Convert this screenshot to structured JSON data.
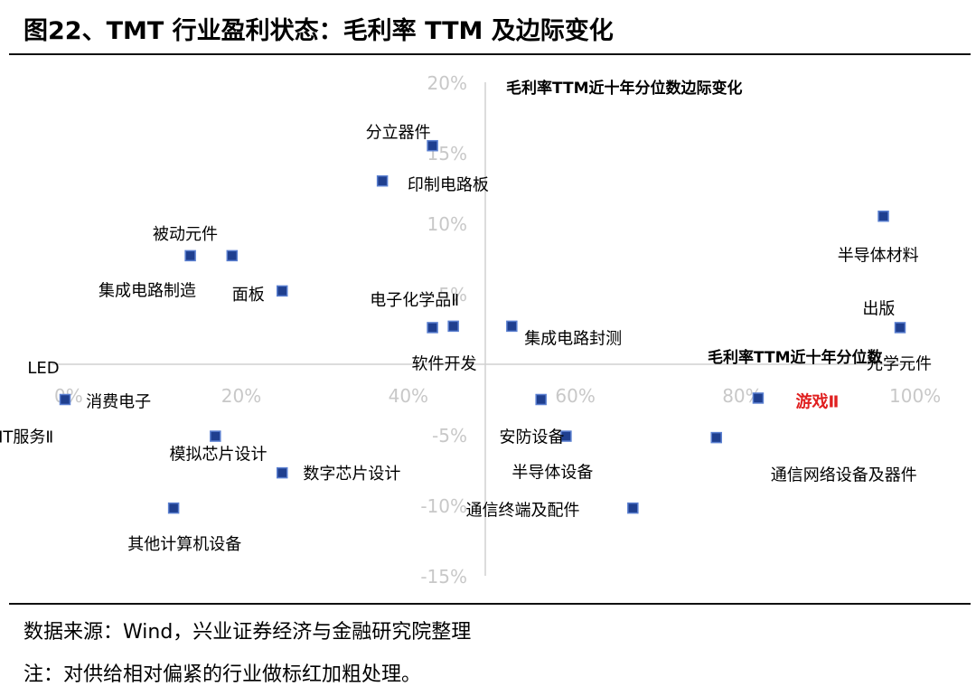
{
  "figure": {
    "title": "图22、TMT 行业盈利状态：毛利率 TTM 及边际变化",
    "source": "数据来源：Wind，兴业证券经济与金融研究院整理",
    "note": "注：对供给相对偏紧的行业做标红加粗处理。"
  },
  "chart_data": {
    "type": "scatter",
    "title": "",
    "xlabel": "毛利率TTM近十年分位数",
    "ylabel": "毛利率TTM近十年分位数边际变化",
    "xlim": [
      0,
      1
    ],
    "ylim": [
      -0.15,
      0.2
    ],
    "x_ticks": [
      {
        "value": 0,
        "label": "0%"
      },
      {
        "value": 0.2,
        "label": "20%"
      },
      {
        "value": 0.4,
        "label": "40%"
      },
      {
        "value": 0.6,
        "label": "60%"
      },
      {
        "value": 0.8,
        "label": "80%"
      },
      {
        "value": 1.0,
        "label": "100%"
      }
    ],
    "y_ticks": [
      {
        "value": 0.2,
        "label": "20%"
      },
      {
        "value": 0.15,
        "label": "15%"
      },
      {
        "value": 0.1,
        "label": "10%"
      },
      {
        "value": 0.05,
        "label": "5%"
      },
      {
        "value": -0.05,
        "label": "-5%"
      },
      {
        "value": -0.1,
        "label": "-10%"
      },
      {
        "value": -0.15,
        "label": "-15%"
      }
    ],
    "marker_color": "#1f3f8f",
    "marker_edge_color": "#5a7fd0",
    "highlight_color": "#e02020",
    "grid": false,
    "points": [
      {
        "x": 0.44,
        "y": 0.155
      },
      {
        "x": 0.38,
        "y": 0.13
      },
      {
        "x": 0.98,
        "y": 0.105
      },
      {
        "x": 0.15,
        "y": 0.077
      },
      {
        "x": 0.2,
        "y": 0.077
      },
      {
        "x": 0.26,
        "y": 0.052
      },
      {
        "x": 0.44,
        "y": 0.026
      },
      {
        "x": 0.465,
        "y": 0.027
      },
      {
        "x": 0.535,
        "y": 0.027
      },
      {
        "x": 1.0,
        "y": 0.026
      },
      {
        "x": 0.0,
        "y": -0.025
      },
      {
        "x": 0.57,
        "y": -0.025
      },
      {
        "x": 0.83,
        "y": -0.024
      },
      {
        "x": 0.18,
        "y": -0.051
      },
      {
        "x": 0.6,
        "y": -0.051
      },
      {
        "x": 0.78,
        "y": -0.052
      },
      {
        "x": 0.26,
        "y": -0.077
      },
      {
        "x": 0.68,
        "y": -0.102
      },
      {
        "x": 0.13,
        "y": -0.102
      }
    ],
    "labels": [
      {
        "text": "分立器件",
        "x": 0.36,
        "y": 0.165,
        "highlight": false
      },
      {
        "text": "印制电路板",
        "x": 0.41,
        "y": 0.128,
        "highlight": false
      },
      {
        "text": "被动元件",
        "x": 0.105,
        "y": 0.093,
        "highlight": false
      },
      {
        "text": "半导体材料",
        "x": 0.925,
        "y": 0.078,
        "highlight": false
      },
      {
        "text": "集成电路制造",
        "x": 0.04,
        "y": 0.053,
        "highlight": false
      },
      {
        "text": "面板",
        "x": 0.2,
        "y": 0.05,
        "highlight": false
      },
      {
        "text": "电子化学品Ⅱ",
        "x": 0.365,
        "y": 0.046,
        "highlight": false
      },
      {
        "text": "出版",
        "x": 0.955,
        "y": 0.04,
        "highlight": false
      },
      {
        "text": "集成电路封测",
        "x": 0.55,
        "y": 0.019,
        "highlight": false
      },
      {
        "text": "软件开发",
        "x": 0.415,
        "y": 0.001,
        "highlight": false
      },
      {
        "text": "光学元件",
        "x": 0.96,
        "y": 0.001,
        "highlight": false
      },
      {
        "text": "LED",
        "x": -0.045,
        "y": -0.002,
        "highlight": false
      },
      {
        "text": "消费电子",
        "x": 0.025,
        "y": -0.026,
        "highlight": false
      },
      {
        "text": "游戏Ⅱ",
        "x": 0.875,
        "y": -0.026,
        "highlight": true
      },
      {
        "text": "IT服务Ⅱ",
        "x": -0.08,
        "y": -0.051,
        "highlight": false
      },
      {
        "text": "安防设备",
        "x": 0.52,
        "y": -0.051,
        "highlight": false
      },
      {
        "text": "模拟芯片设计",
        "x": 0.125,
        "y": -0.063,
        "highlight": false
      },
      {
        "text": "半导体设备",
        "x": 0.535,
        "y": -0.076,
        "highlight": false
      },
      {
        "text": "通信网络设备及器件",
        "x": 0.845,
        "y": -0.078,
        "highlight": false
      },
      {
        "text": "数字芯片设计",
        "x": 0.285,
        "y": -0.077,
        "highlight": false
      },
      {
        "text": "通信终端及配件",
        "x": 0.48,
        "y": -0.103,
        "highlight": false
      },
      {
        "text": "其他计算机设备",
        "x": 0.075,
        "y": -0.127,
        "highlight": false
      }
    ]
  }
}
